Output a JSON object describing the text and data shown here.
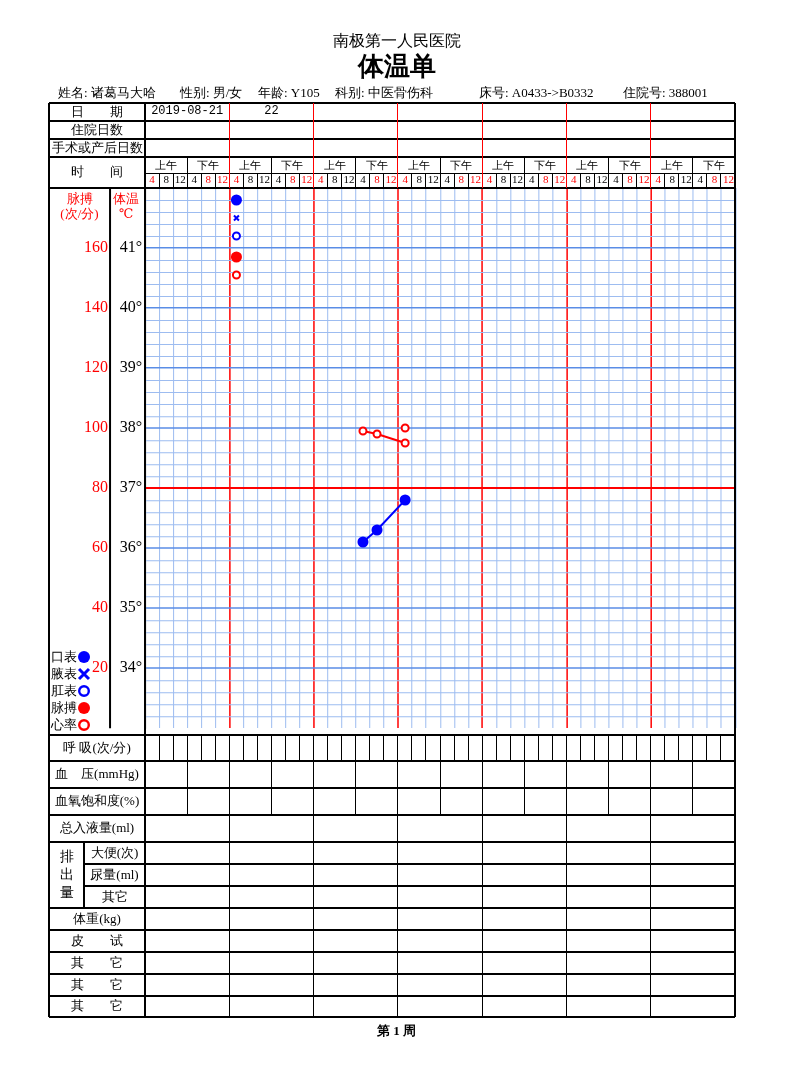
{
  "chart_data": {
    "type": "line",
    "title": "体温单",
    "subtitle": "南极第一人民医院",
    "xlabel": "时　　间",
    "ylabel": "脉搏\n(次/分)",
    "y2label": "体温\n℃",
    "categories": [
      "4",
      "8",
      "12",
      "4",
      "8",
      "12",
      "4",
      "8",
      "12",
      "4",
      "8",
      "12",
      "4",
      "8",
      "12",
      "4",
      "8",
      "12",
      "4",
      "8",
      "12",
      "4",
      "8",
      "12",
      "4",
      "8",
      "12",
      "4",
      "8",
      "12",
      "4",
      "8",
      "12",
      "4",
      "8",
      "12",
      "4",
      "8",
      "12",
      "4",
      "8",
      "12"
    ],
    "series": [
      {
        "name": "口表",
        "color": "#0000ff",
        "marker": "circle",
        "axis": "y2",
        "values": [
          null,
          null,
          null,
          null,
          null,
          null,
          null,
          null,
          null,
          null,
          null,
          null,
          null,
          null,
          null,
          36.1,
          36.3,
          null,
          36.8,
          null,
          null,
          null,
          null,
          null,
          null,
          null,
          null,
          null,
          null,
          null,
          null,
          null,
          null,
          null,
          null,
          null,
          null,
          null,
          null,
          null,
          null,
          null
        ]
      },
      {
        "name": "腋表",
        "type": "scatter",
        "color": "#0000ff",
        "marker": "cross",
        "axis": "y2",
        "values": [
          null,
          null,
          null,
          null,
          null,
          null,
          41.5,
          null,
          null,
          null,
          null,
          null,
          null,
          null,
          null,
          null,
          null,
          null,
          null,
          null,
          null,
          null,
          null,
          null,
          null,
          null,
          null,
          null,
          null,
          null,
          null,
          null,
          null,
          null,
          null,
          null,
          null,
          null,
          null,
          null,
          null,
          null
        ]
      },
      {
        "name": "肛表",
        "type": "scatter",
        "color": "#0000ff",
        "marker": "circle",
        "axis": "y2",
        "values": [
          null,
          null,
          null,
          null,
          null,
          null,
          41.2,
          null,
          null,
          null,
          null,
          null,
          null,
          null,
          null,
          null,
          null,
          null,
          null,
          null,
          null,
          null,
          null,
          null,
          null,
          null,
          null,
          null,
          null,
          null,
          null,
          null,
          null,
          null,
          null,
          null,
          null,
          null,
          null,
          null,
          null,
          null
        ]
      },
      {
        "name": "脉搏",
        "type": "scatter",
        "color": "#ff0000",
        "marker": "circle",
        "values": [
          null,
          null,
          null,
          null,
          null,
          null,
          157,
          null,
          null,
          null,
          null,
          null,
          null,
          null,
          null,
          null,
          null,
          null,
          null,
          null,
          null,
          null,
          null,
          null,
          null,
          null,
          null,
          null,
          null,
          null,
          null,
          null,
          null,
          null,
          null,
          null,
          null,
          null,
          null,
          null,
          null,
          null
        ]
      },
      {
        "name": "心率",
        "color": "#ff0000",
        "marker": "circle",
        "values": [
          null,
          null,
          null,
          null,
          null,
          null,
          null,
          null,
          null,
          null,
          null,
          null,
          null,
          null,
          null,
          99,
          98,
          null,
          95,
          null,
          null,
          null,
          null,
          null,
          null,
          null,
          null,
          null,
          null,
          null,
          null,
          null,
          null,
          null,
          null,
          null,
          null,
          null,
          null,
          null,
          null,
          null
        ]
      },
      {
        "type": "scatter",
        "color": "#0000ff",
        "marker": "circle",
        "axis": "y2",
        "values": [
          null,
          null,
          null,
          null,
          null,
          null,
          41.8,
          null,
          null,
          null,
          null,
          null,
          null,
          null,
          null,
          null,
          null,
          null,
          null,
          null,
          null,
          null,
          null,
          null,
          null,
          null,
          null,
          null,
          null,
          null,
          null,
          null,
          null,
          null,
          null,
          null,
          null,
          null,
          null,
          null,
          null,
          null
        ]
      },
      {
        "type": "scatter",
        "color": "#ff0000",
        "marker": "circle",
        "values": [
          null,
          null,
          null,
          null,
          null,
          null,
          151,
          null,
          null,
          null,
          null,
          null,
          null,
          null,
          null,
          null,
          null,
          null,
          null,
          null,
          null,
          null,
          null,
          null,
          null,
          null,
          null,
          null,
          null,
          null,
          null,
          null,
          null,
          null,
          null,
          null,
          null,
          null,
          null,
          null,
          null,
          null
        ]
      },
      {
        "type": "scatter",
        "color": "#ff0000",
        "marker": "circle",
        "values": [
          null,
          null,
          null,
          null,
          null,
          null,
          null,
          null,
          null,
          null,
          null,
          null,
          null,
          null,
          null,
          null,
          null,
          null,
          100,
          null,
          null,
          null,
          null,
          null,
          null,
          null,
          null,
          null,
          null,
          null,
          null,
          null,
          null,
          null,
          null,
          null,
          null,
          null,
          null,
          null,
          null,
          null
        ]
      }
    ],
    "ylim": [
      0,
      180
    ],
    "yticks": [
      20,
      40,
      60,
      80,
      100,
      120,
      140,
      160
    ],
    "y2lim": [
      33,
      42
    ],
    "y2ticks": [
      {
        "value": 34,
        "label": "34°"
      },
      {
        "value": 35,
        "label": "35°"
      },
      {
        "value": 36,
        "label": "36°"
      },
      {
        "value": 37,
        "label": "37°"
      },
      {
        "value": 38,
        "label": "38°"
      },
      {
        "value": 39,
        "label": "39°"
      },
      {
        "value": 40,
        "label": "40°"
      },
      {
        "value": 41,
        "label": "41°"
      }
    ],
    "ref_lines": [
      {
        "axis": "y2",
        "value": 37,
        "color": "#ff0000"
      }
    ],
    "grid": true,
    "legend": "bottom left",
    "line_style": "solid",
    "annotations": [
      "姓名: 诸葛马大哈",
      "性别: 男/女",
      "年龄: Y105",
      "科别: 中医骨伤科",
      "床号: A0433->B0332",
      "住院号: 388001",
      "日　　期",
      "2019-08-21",
      "22",
      "住院日数",
      "手术或产后日数",
      "上午",
      "下午",
      "呼  吸(次/分)",
      "血　压(mmHg)",
      "血氧饱和度(%)",
      "总入液量(ml)",
      "排出量",
      "大便(次)",
      "尿量(ml)",
      "其它",
      "体重(kg)",
      "皮　　试",
      "其　　它",
      "其　　它",
      "其　　它",
      "第 1 周"
    ]
  }
}
